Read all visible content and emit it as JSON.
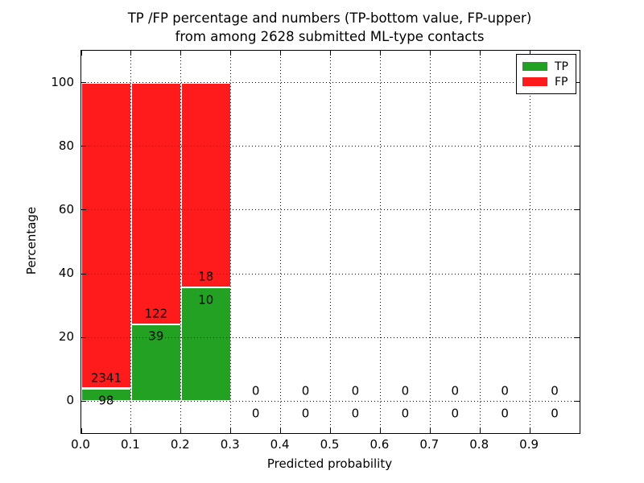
{
  "figure": {
    "title_line1": "TP /FP percentage and numbers (TP-bottom value, FP-upper)",
    "title_line2": "from among 2628 submitted ML-type contacts"
  },
  "chart_data": {
    "type": "bar",
    "stacked": true,
    "title": "TP /FP percentage and numbers (TP-bottom value, FP-upper) from among 2628 submitted ML-type contacts",
    "total_contacts": 2628,
    "xlabel": "Predicted probability",
    "ylabel": "Percentage",
    "xlim": [
      0.0,
      1.0
    ],
    "ylim": [
      -10,
      110
    ],
    "xticks": [
      0.0,
      0.1,
      0.2,
      0.3,
      0.4,
      0.5,
      0.6,
      0.7,
      0.8,
      0.9
    ],
    "xtick_labels": [
      "0.0",
      "0.1",
      "0.2",
      "0.3",
      "0.4",
      "0.5",
      "0.6",
      "0.7",
      "0.8",
      "0.9"
    ],
    "yticks": [
      0,
      20,
      40,
      60,
      80,
      100
    ],
    "ytick_labels": [
      "0",
      "20",
      "40",
      "60",
      "80",
      "100"
    ],
    "grid": {
      "visible": true,
      "style": "dotted",
      "color": "#000000",
      "axisbelow": false
    },
    "colors": {
      "tp": "#22a122",
      "fp": "#ff1b1b",
      "bar_edge": "#ffffff"
    },
    "legend": {
      "position": "upper-right",
      "entries": [
        {
          "label": "TP",
          "color": "#22a122"
        },
        {
          "label": "FP",
          "color": "#ff1b1b"
        }
      ]
    },
    "bins": [
      {
        "x0": 0.0,
        "x1": 0.1,
        "tp_count": 98,
        "fp_count": 2341,
        "tp_pct": 4.02,
        "fp_pct": 95.98
      },
      {
        "x0": 0.1,
        "x1": 0.2,
        "tp_count": 39,
        "fp_count": 122,
        "tp_pct": 24.22,
        "fp_pct": 75.78
      },
      {
        "x0": 0.2,
        "x1": 0.3,
        "tp_count": 10,
        "fp_count": 18,
        "tp_pct": 35.71,
        "fp_pct": 64.29
      },
      {
        "x0": 0.3,
        "x1": 0.4,
        "tp_count": 0,
        "fp_count": 0,
        "tp_pct": 0,
        "fp_pct": 0
      },
      {
        "x0": 0.4,
        "x1": 0.5,
        "tp_count": 0,
        "fp_count": 0,
        "tp_pct": 0,
        "fp_pct": 0
      },
      {
        "x0": 0.5,
        "x1": 0.6,
        "tp_count": 0,
        "fp_count": 0,
        "tp_pct": 0,
        "fp_pct": 0
      },
      {
        "x0": 0.6,
        "x1": 0.7,
        "tp_count": 0,
        "fp_count": 0,
        "tp_pct": 0,
        "fp_pct": 0
      },
      {
        "x0": 0.7,
        "x1": 0.8,
        "tp_count": 0,
        "fp_count": 0,
        "tp_pct": 0,
        "fp_pct": 0
      },
      {
        "x0": 0.8,
        "x1": 0.9,
        "tp_count": 0,
        "fp_count": 0,
        "tp_pct": 0,
        "fp_pct": 0
      },
      {
        "x0": 0.9,
        "x1": 1.0,
        "tp_count": 0,
        "fp_count": 0,
        "tp_pct": 0,
        "fp_pct": 0
      }
    ]
  }
}
